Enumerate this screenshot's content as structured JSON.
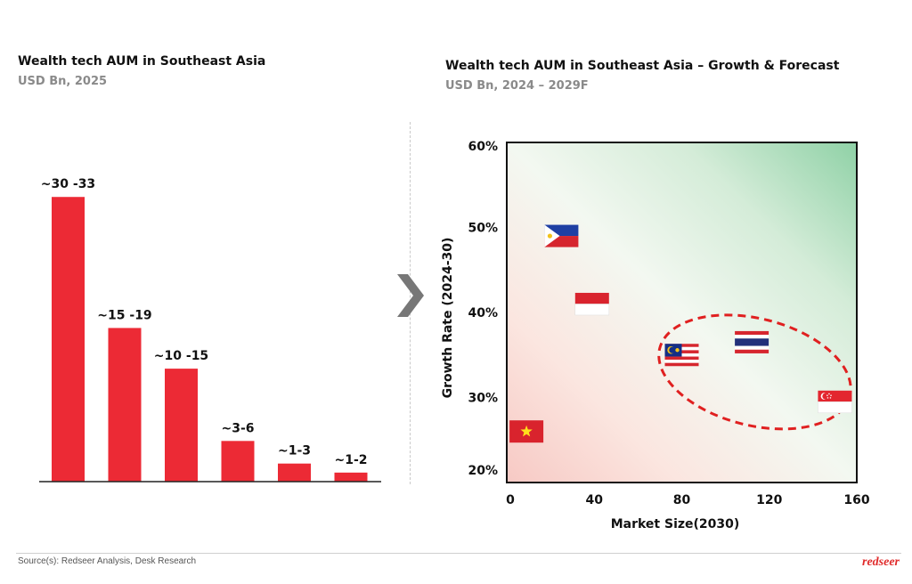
{
  "charts": {
    "left": {
      "title": "Wealth tech AUM in Southeast Asia",
      "subtitle": "USD Bn, 2025"
    },
    "right": {
      "title": "Wealth tech AUM in Southeast Asia – Growth & Forecast",
      "subtitle": "USD Bn, 2024 – 2029F",
      "xlabel": "Market Size(2030)",
      "ylabel": "Growth Rate (2024-30)"
    }
  },
  "footer": {
    "source": "Source(s): Redseer Analysis, Desk Research",
    "brand": "redseer"
  },
  "colors": {
    "bar": "#ec2a35",
    "cluster_ring": "#e02020",
    "axis": "#111111"
  },
  "chart_data": [
    {
      "type": "bar",
      "title": "Wealth tech AUM in Southeast Asia",
      "subtitle": "USD Bn, 2025",
      "categories": [
        "",
        "",
        "",
        "",
        "",
        ""
      ],
      "values": [
        31.5,
        17,
        12.5,
        4.5,
        2,
        1
      ],
      "data_labels": [
        "~30 -33",
        "~15 -19",
        "~10 -15",
        "~3-6",
        "~1-3",
        "~1-2"
      ],
      "ylim": [
        0,
        33
      ],
      "grid": false
    },
    {
      "type": "scatter",
      "title": "Wealth tech AUM in Southeast Asia – Growth & Forecast",
      "subtitle": "USD Bn, 2024 – 2029F",
      "xlabel": "Market Size(2030)",
      "ylabel": "Growth Rate (2024-30)",
      "xlim": [
        0,
        160
      ],
      "ylim": [
        20,
        60
      ],
      "xticks": [
        "0",
        "40",
        "80",
        "120",
        "160"
      ],
      "yticks": [
        "20%",
        "30%",
        "40%",
        "50%",
        "60%"
      ],
      "points": [
        {
          "marker": "philippines-flag",
          "x": 25,
          "y": 49
        },
        {
          "marker": "indonesia-flag",
          "x": 39,
          "y": 41
        },
        {
          "marker": "malaysia-flag",
          "x": 80,
          "y": 35
        },
        {
          "marker": "thailand-flag",
          "x": 112,
          "y": 36.5
        },
        {
          "marker": "singapore-flag",
          "x": 150,
          "y": 29.5
        },
        {
          "marker": "vietnam-flag",
          "x": 9,
          "y": 26
        }
      ],
      "highlight": {
        "shape": "dashed-ellipse",
        "encloses": [
          "malaysia-flag",
          "thailand-flag",
          "singapore-flag"
        ]
      },
      "background": "gradient-green-top-right-red-bottom-left",
      "grid": false
    }
  ]
}
